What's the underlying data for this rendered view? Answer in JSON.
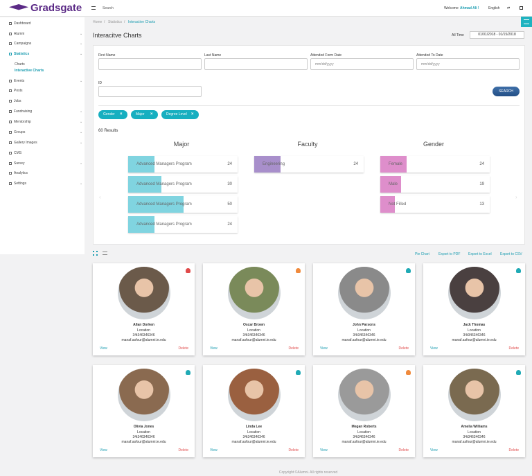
{
  "header": {
    "logo": "Gradsgate",
    "search": "Search",
    "welcome": "Welcome",
    "user": "Ahmad Ali !",
    "language": "English"
  },
  "sidebar": {
    "items": [
      "Dashboard",
      "Alumni",
      "Campaigns",
      "Statistics",
      "Events",
      "Posts",
      "Jobs",
      "Fundraising",
      "Mentorship",
      "Groups",
      "Gallery Images",
      "CMS",
      "Survey",
      "Analytics",
      "Settings"
    ],
    "subitems": [
      "Charts",
      "Interactive Charts"
    ]
  },
  "breadcrumb": [
    "Home",
    "Statistics",
    "Interactive Charts"
  ],
  "page": {
    "title": "Interacitve Charts",
    "range_label": "All Time",
    "date_range": "01/01/2018 - 01/15/2018"
  },
  "filters": {
    "fields": [
      {
        "label": "First Name"
      },
      {
        "label": "Last Name"
      },
      {
        "label": "Attended Form Date",
        "placeholder": "mm/dd/yyyy"
      },
      {
        "label": "Attended To Date",
        "placeholder": "mm/dd/yyyy"
      },
      {
        "label": "ID"
      }
    ],
    "button": "SEARCH",
    "tags": [
      "Gender",
      "Major",
      "Degree Level"
    ]
  },
  "results": "60 Results",
  "charts": [
    {
      "title": "Major",
      "color": "#80d4e0",
      "rows": [
        {
          "label": "Advanced Managers Program",
          "value": 24
        },
        {
          "label": "Advanced Managers Program",
          "value": 30
        },
        {
          "label": "Advanced Managers Program",
          "value": 50
        },
        {
          "label": "Advanced Managers Program",
          "value": 24
        }
      ]
    },
    {
      "title": "Faculty",
      "color": "#a88fcb",
      "rows": [
        {
          "label": "Engineering",
          "value": 24
        }
      ]
    },
    {
      "title": "Gender",
      "color": "#de8ecb",
      "rows": [
        {
          "label": "Female",
          "value": 24
        },
        {
          "label": "Male",
          "value": 19
        },
        {
          "label": "Not Filled",
          "value": 13
        }
      ]
    }
  ],
  "toolbar": [
    "Pie Chart",
    "Export to PDF",
    "Export to Excel",
    "Export to CSV"
  ],
  "cards": [
    {
      "name": "Allan Dorken",
      "location": "Location",
      "phone": "34t346346346",
      "email": "manaf.asfour@alumni.ie.edu",
      "view": "View",
      "delete": "Delete",
      "icon_color": "#e04a4a"
    },
    {
      "name": "Oscar Brown",
      "location": "Location",
      "phone": "34t346346346",
      "email": "manaf.asfour@alumni.ie.edu",
      "view": "View",
      "delete": "Delete",
      "icon_color": "#f08a3c"
    },
    {
      "name": "John Parsons",
      "location": "Location",
      "phone": "34t346346346",
      "email": "manaf.asfour@alumni.ie.edu",
      "view": "View",
      "delete": "Delete",
      "icon_color": "#20aab5"
    },
    {
      "name": "Jack Thomas",
      "location": "Location",
      "phone": "34t346346346",
      "email": "manaf.asfour@alumni.ie.edu",
      "view": "View",
      "delete": "Delete",
      "icon_color": "#20aab5"
    },
    {
      "name": "Olivia Jones",
      "location": "Location",
      "phone": "34t346346346",
      "email": "manaf.asfour@alumni.ie.edu",
      "view": "View",
      "delete": "Delete",
      "icon_color": "#20aab5"
    },
    {
      "name": "Linda Lee",
      "location": "Location",
      "phone": "34t346346346",
      "email": "manaf.asfour@alumni.ie.edu",
      "view": "View",
      "delete": "Delete",
      "icon_color": "#20aab5"
    },
    {
      "name": "Megan Roberts",
      "location": "Location",
      "phone": "34t346346346",
      "email": "manaf.asfour@alumni.ie.edu",
      "view": "View",
      "delete": "Delete",
      "icon_color": "#f08a3c"
    },
    {
      "name": "Amelia Williams",
      "location": "Location",
      "phone": "34t346346346",
      "email": "manaf.asfour@alumni.ie.edu",
      "view": "View",
      "delete": "Delete",
      "icon_color": "#20aab5"
    }
  ],
  "footer": "Copyright ©Alumni. All rights reserved"
}
